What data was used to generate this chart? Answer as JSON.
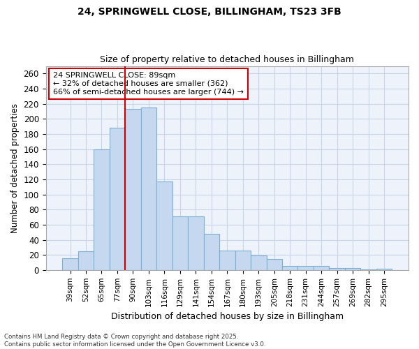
{
  "title1": "24, SPRINGWELL CLOSE, BILLINGHAM, TS23 3FB",
  "title2": "Size of property relative to detached houses in Billingham",
  "xlabel": "Distribution of detached houses by size in Billingham",
  "ylabel": "Number of detached properties",
  "categories": [
    "39sqm",
    "52sqm",
    "65sqm",
    "77sqm",
    "90sqm",
    "103sqm",
    "116sqm",
    "129sqm",
    "141sqm",
    "154sqm",
    "167sqm",
    "180sqm",
    "193sqm",
    "205sqm",
    "218sqm",
    "231sqm",
    "244sqm",
    "257sqm",
    "269sqm",
    "282sqm",
    "295sqm"
  ],
  "values": [
    16,
    25,
    160,
    188,
    213,
    215,
    117,
    71,
    71,
    48,
    26,
    26,
    19,
    15,
    5,
    5,
    5,
    3,
    3,
    1,
    2
  ],
  "bar_color": "#c5d8f0",
  "bar_edge_color": "#7bafd4",
  "grid_color": "#c8d4e8",
  "background_color": "#ffffff",
  "plot_bg_color": "#eef2fb",
  "vline_color": "#cc0000",
  "vline_x_index": 4,
  "annotation_line1": "24 SPRINGWELL CLOSE: 89sqm",
  "annotation_line2": "← 32% of detached houses are smaller (362)",
  "annotation_line3": "66% of semi-detached houses are larger (744) →",
  "annotation_box_color": "#ffffff",
  "annotation_box_edge": "#cc0000",
  "footer": "Contains HM Land Registry data © Crown copyright and database right 2025.\nContains public sector information licensed under the Open Government Licence v3.0.",
  "ylim": [
    0,
    270
  ],
  "yticks": [
    0,
    20,
    40,
    60,
    80,
    100,
    120,
    140,
    160,
    180,
    200,
    220,
    240,
    260
  ]
}
